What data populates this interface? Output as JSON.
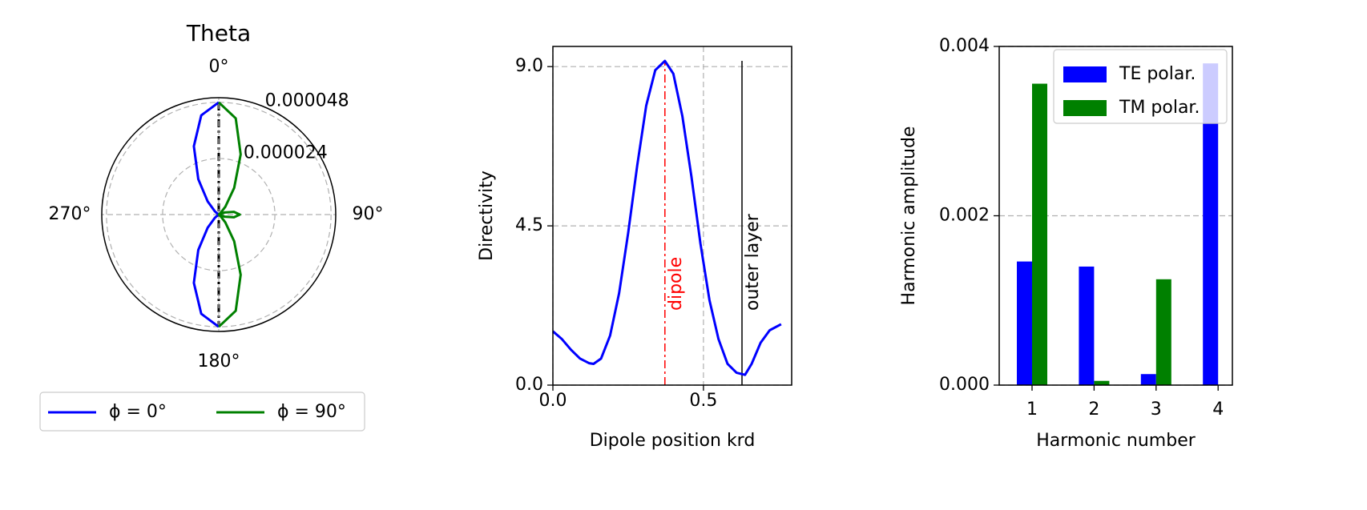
{
  "chart_data": [
    {
      "type": "polar",
      "title": "Theta",
      "thetaticks": [
        {
          "value": 0,
          "label": "0°"
        },
        {
          "value": 90,
          "label": "90°"
        },
        {
          "value": 180,
          "label": "180°"
        },
        {
          "value": 270,
          "label": "270°"
        }
      ],
      "rlim": [
        0,
        5e-05
      ],
      "rticks": [
        2.4e-05,
        4.8e-05
      ],
      "grid": true,
      "legend": "lower center",
      "series": [
        {
          "name": "ϕ = 0°",
          "color": "#0000ff",
          "theta": [
            180,
            190,
            200,
            210,
            220,
            230,
            240,
            250,
            260,
            270,
            280,
            290,
            300,
            310,
            320,
            330,
            340,
            350,
            360
          ],
          "r": [
            4.8e-05,
            4.31e-05,
            3.11e-05,
            1.75e-05,
            7.4e-06,
            2.2e-06,
            4e-07,
            0,
            0,
            0,
            0,
            0,
            4e-07,
            2.2e-06,
            7.4e-06,
            1.75e-05,
            3.11e-05,
            4.31e-05,
            4.8e-05
          ]
        },
        {
          "name": "ϕ = 90°",
          "color": "#008000",
          "theta": [
            0,
            10,
            20,
            30,
            40,
            50,
            60,
            70,
            80,
            90,
            100,
            110,
            120,
            130,
            140,
            150,
            160,
            170,
            180
          ],
          "r": [
            4.8e-05,
            4.18e-05,
            2.74e-05,
            1.32e-05,
            4.4e-06,
            9e-07,
            1e-07,
            2.6e-06,
            6.6e-06,
            9e-06,
            6.6e-06,
            2.6e-06,
            1e-07,
            9e-07,
            4.4e-06,
            1.32e-05,
            2.74e-05,
            4.18e-05,
            4.8e-05
          ]
        }
      ]
    },
    {
      "type": "line",
      "x_label": "Dipole position krd",
      "y_label": "Directivity",
      "xlim": [
        0,
        0.793
      ],
      "ylim": [
        0,
        9.57
      ],
      "xticks": [
        {
          "value": 0,
          "label": "0.0"
        },
        {
          "value": 0.5,
          "label": "0.5"
        }
      ],
      "yticks": [
        {
          "value": 0,
          "label": "0.0"
        },
        {
          "value": 4.5,
          "label": "4.5"
        },
        {
          "value": 9,
          "label": "9.0"
        }
      ],
      "grid": true,
      "series": [
        {
          "color": "#0000ff",
          "x": [
            0,
            0.03,
            0.06,
            0.09,
            0.12,
            0.135,
            0.16,
            0.19,
            0.22,
            0.25,
            0.28,
            0.31,
            0.34,
            0.372,
            0.4,
            0.43,
            0.46,
            0.49,
            0.52,
            0.55,
            0.58,
            0.61,
            0.638,
            0.66,
            0.69,
            0.72,
            0.758
          ],
          "values": [
            1.52,
            1.3,
            1.0,
            0.75,
            0.62,
            0.6,
            0.75,
            1.4,
            2.6,
            4.3,
            6.2,
            7.9,
            8.9,
            9.16,
            8.8,
            7.6,
            5.9,
            4.0,
            2.4,
            1.3,
            0.6,
            0.35,
            0.29,
            0.6,
            1.2,
            1.55,
            1.72
          ]
        }
      ],
      "annotations": [
        {
          "text": "dipole",
          "x": 0.372,
          "color": "#ff0000",
          "style": "dashdot"
        },
        {
          "text": "outer layer",
          "x": 0.628,
          "color": "#000000",
          "style": "solid"
        }
      ]
    },
    {
      "type": "bar",
      "x_label": "Harmonic number",
      "y_label": "Harmonic amplitude",
      "categories": [
        "1",
        "2",
        "3",
        "4"
      ],
      "ylim": [
        0,
        0.004
      ],
      "yticks": [
        {
          "value": 0,
          "label": "0.000"
        },
        {
          "value": 0.002,
          "label": "0.002"
        },
        {
          "value": 0.004,
          "label": "0.004"
        }
      ],
      "grid": true,
      "legend": "upper right",
      "series": [
        {
          "name": "TE polar.",
          "color": "#0000ff",
          "values": [
            0.00146,
            0.0014,
            0.00013,
            0.0038
          ]
        },
        {
          "name": "TM polar.",
          "color": "#008000",
          "values": [
            0.00356,
            5e-05,
            0.00125,
            0
          ]
        }
      ]
    }
  ]
}
